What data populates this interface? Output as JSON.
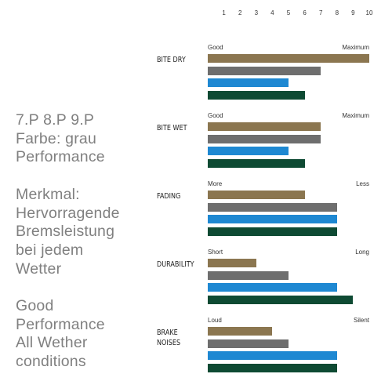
{
  "text_block": {
    "paragraphs": [
      [
        "7.P 8.P 9.P",
        "Farbe: grau",
        "Performance"
      ],
      [
        "Merkmal:",
        "Hervorragende",
        "Bremsleistung",
        "bei jedem",
        "Wetter"
      ],
      [
        "Good",
        "Performance",
        "All Wether",
        "conditions"
      ]
    ]
  },
  "chart_data": {
    "type": "grouped-hbar",
    "categories": [
      "BITE DRY",
      "BITE WET",
      "FADING",
      "DURABILITY",
      "BRAKE\nNOISES"
    ],
    "scale_labels": [
      [
        "Good",
        "Maximum"
      ],
      [
        "Good",
        "Maximum"
      ],
      [
        "More",
        "Less"
      ],
      [
        "Short",
        "Long"
      ],
      [
        "Loud",
        "Silent"
      ]
    ],
    "xlim": [
      0,
      10
    ],
    "xticks": [
      1,
      2,
      3,
      4,
      5,
      6,
      7,
      8,
      9,
      10
    ],
    "series": [
      {
        "color": "#8b7650",
        "values": [
          10,
          7,
          6,
          3,
          4
        ]
      },
      {
        "color": "#6e6e6e",
        "values": [
          7,
          7,
          8,
          5,
          5
        ]
      },
      {
        "color": "#1e88d2",
        "values": [
          5,
          5,
          8,
          8,
          8
        ]
      },
      {
        "color": "#0e4a33",
        "values": [
          6,
          6,
          8,
          9,
          8
        ]
      }
    ]
  }
}
